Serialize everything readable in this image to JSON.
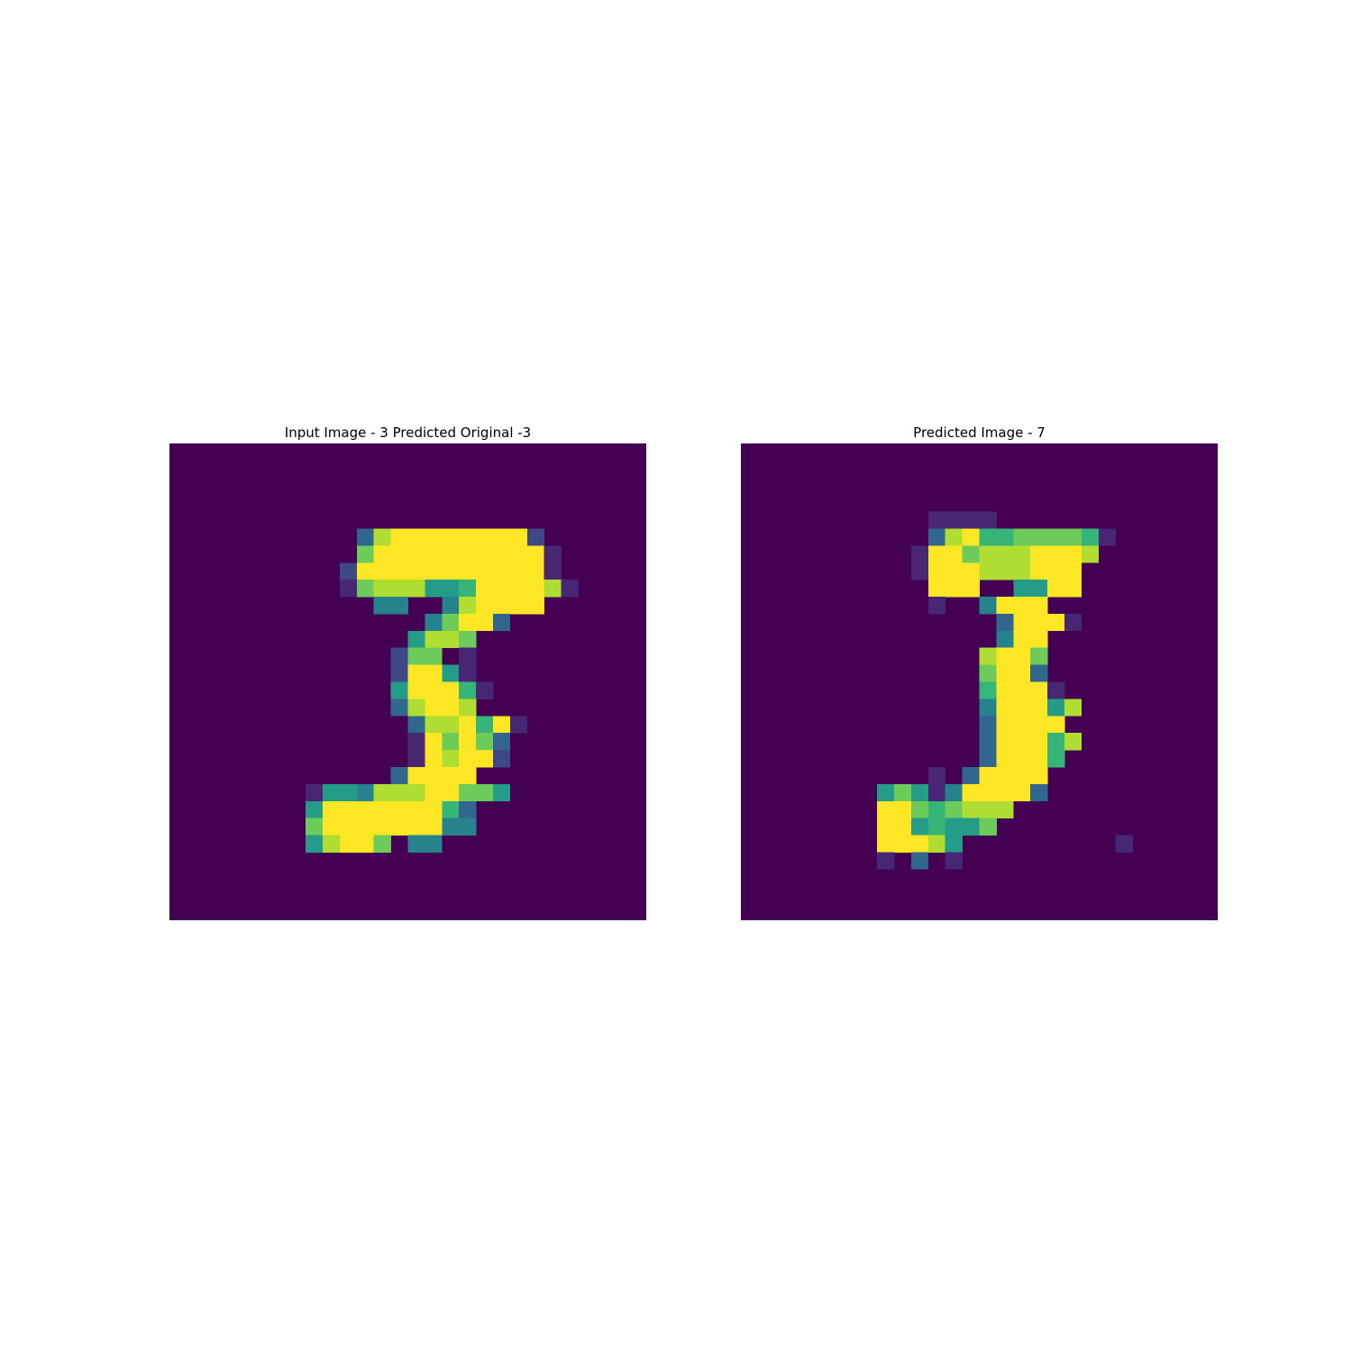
{
  "colormap": "viridis",
  "chart_data": [
    {
      "type": "heatmap",
      "title": "Input Image - 3 Predicted Original -3",
      "grid": false,
      "axes_visible": false,
      "value_range": [
        0,
        1
      ],
      "rows": [
        "............................",
        "............................",
        "............................",
        "............................",
        "............................",
        "...........38999999992......",
        "...........799999999991.....",
        "..........2999999999991.....",
        "..........17888556999981....",
        "............44..489999......",
        "...............47993........",
        "..............5887..........",
        ".............277.1..........",
        ".............29951..........",
        ".............599961.........",
        ".............38998..........",
        "..............3889691.......",
        "..............197973........",
        "..............198992........",
        ".............39999...........",
        "........155488899775.........",
        "........5999999963..........",
        "........7999999944...........",
        "........58997.44.............",
        "............................",
        "............................",
        "............................",
        "............................"
      ]
    },
    {
      "type": "heatmap",
      "title": "Predicted Image - 7",
      "grid": false,
      "axes_visible": false,
      "value_range": [
        0,
        1
      ],
      "rows": [
        "............................",
        "............................",
        "............................",
        "............................",
        "...........1111.............",
        "...........38966777761......",
        "..........19978889998.......",
        "..........1999888999........",
        "...........999..5599........",
        "...........1..4999..........",
        "...............39991........",
        "...............499..........",
        "..............8997..........",
        "..............7993..........",
        "..............69991.........",
        "..............499958........",
        "..............39999.........",
        "..............399968........",
        "..............39996.........",
        "...........1.39999..........",
        "........5751499993..........",
        "........99767888.............",
        "........9956557..............",
        "........99985.........1......",
        "........1.3.1................",
        "............................",
        "............................",
        "............................"
      ]
    }
  ]
}
